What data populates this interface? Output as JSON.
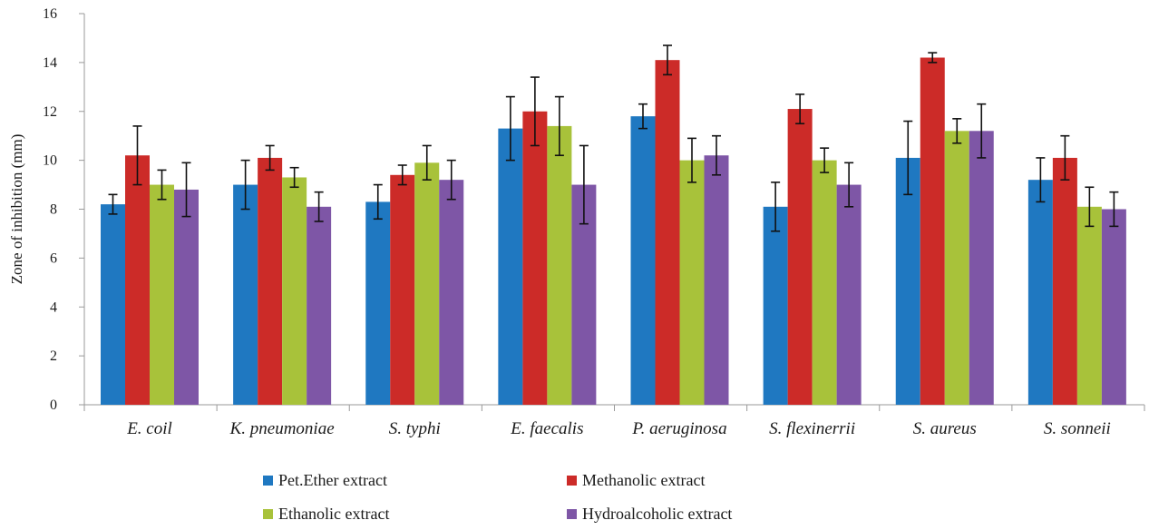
{
  "chart_data": {
    "type": "bar",
    "title": "",
    "xlabel": "",
    "ylabel": "Zone of inhibition (mm)",
    "ylim": [
      0,
      16
    ],
    "yticks": [
      0,
      2,
      4,
      6,
      8,
      10,
      12,
      14,
      16
    ],
    "grid": false,
    "legend_position": "bottom",
    "categories": [
      "E. coil",
      "K. pneumoniae",
      "S. typhi",
      "E. faecalis",
      "P. aeruginosa",
      "S. flexinerrii",
      "S. aureus",
      "S. sonneii"
    ],
    "series": [
      {
        "name": "Pet.Ether extract",
        "color": "#1f78c1",
        "values": [
          8.2,
          9.0,
          8.3,
          11.3,
          11.8,
          8.1,
          10.1,
          9.2
        ],
        "errors": [
          0.4,
          1.0,
          0.7,
          1.3,
          0.5,
          1.0,
          1.5,
          0.9
        ]
      },
      {
        "name": "Methanolic extract",
        "color": "#cc2b28",
        "values": [
          10.2,
          10.1,
          9.4,
          12.0,
          14.1,
          12.1,
          14.2,
          10.1
        ],
        "errors": [
          1.2,
          0.5,
          0.4,
          1.4,
          0.6,
          0.6,
          0.2,
          0.9
        ]
      },
      {
        "name": "Ethanolic extract",
        "color": "#a8c23a",
        "values": [
          9.0,
          9.3,
          9.9,
          11.4,
          10.0,
          10.0,
          11.2,
          8.1
        ],
        "errors": [
          0.6,
          0.4,
          0.7,
          1.2,
          0.9,
          0.5,
          0.5,
          0.8
        ]
      },
      {
        "name": "Hydroalcoholic extract",
        "color": "#7e56a6",
        "values": [
          8.8,
          8.1,
          9.2,
          9.0,
          10.2,
          9.0,
          11.2,
          8.0
        ],
        "errors": [
          1.1,
          0.6,
          0.8,
          1.6,
          0.8,
          0.9,
          1.1,
          0.7
        ]
      }
    ]
  }
}
